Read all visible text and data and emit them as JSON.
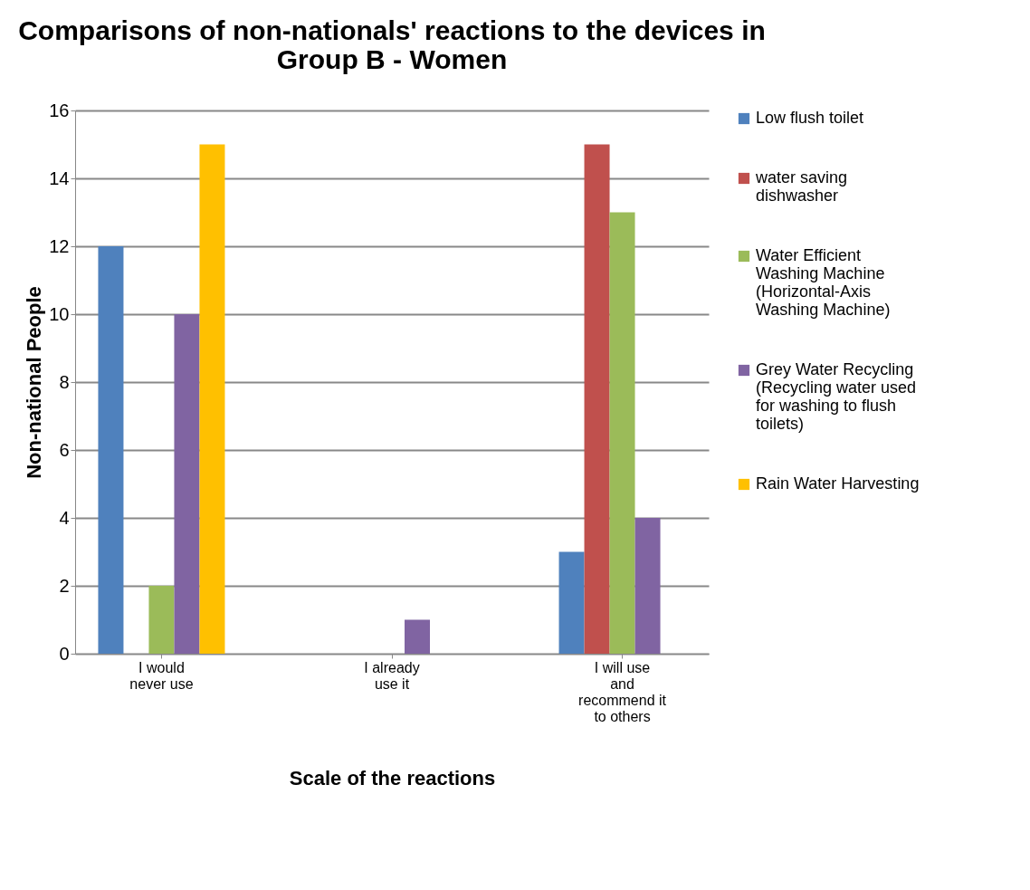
{
  "chart_data": {
    "type": "bar",
    "title": "Comparisons of non-nationals' reactions to the devices in Group B - Women",
    "xlabel": "Scale of the reactions",
    "ylabel": "Non-national People",
    "categories": [
      "I would never use",
      "I already use it",
      "I will use and recommend it to others"
    ],
    "series": [
      {
        "name": "Low flush toilet",
        "color": "#4f81bd",
        "values": [
          12,
          0,
          3
        ]
      },
      {
        "name": "water saving dishwasher",
        "color": "#c0504d",
        "values": [
          0,
          0,
          15
        ]
      },
      {
        "name": "Water Efficient Washing Machine (Horizontal-Axis Washing Machine)",
        "color": "#9bbb59",
        "values": [
          2,
          0,
          13
        ]
      },
      {
        "name": "Grey Water Recycling (Recycling water used for washing to flush toilets)",
        "color": "#8064a2",
        "values": [
          10,
          1,
          4
        ]
      },
      {
        "name": "Rain Water Harvesting",
        "color": "#ffc000",
        "values": [
          15,
          0,
          0
        ]
      }
    ],
    "ylim": [
      0,
      16
    ],
    "yticks": [
      0,
      2,
      4,
      6,
      8,
      10,
      12,
      14,
      16
    ],
    "grid": "y",
    "legend": "top right"
  }
}
